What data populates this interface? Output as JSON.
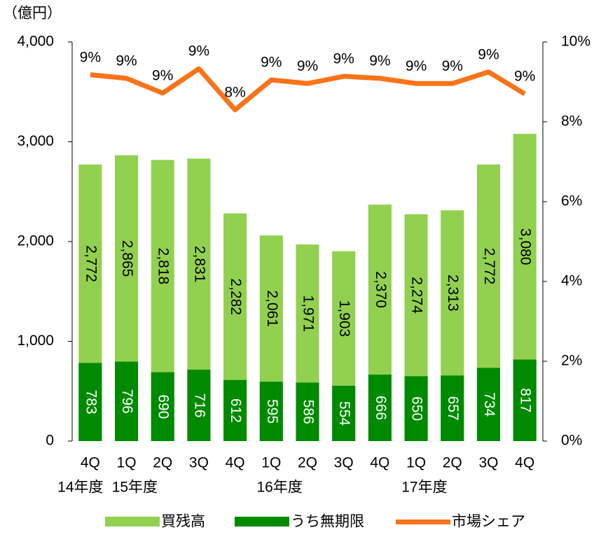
{
  "chart_data": {
    "type": "bar",
    "unit_label": "（億円）",
    "categories": [
      "4Q",
      "1Q",
      "2Q",
      "3Q",
      "4Q",
      "1Q",
      "2Q",
      "3Q",
      "4Q",
      "1Q",
      "2Q",
      "3Q",
      "4Q"
    ],
    "category_groups": [
      {
        "label": "14年度",
        "from": 0,
        "to": 0
      },
      {
        "label": "15年度",
        "from": 1,
        "to": 2
      },
      {
        "label": "16年度",
        "from": 5,
        "to": 6
      },
      {
        "label": "17年度",
        "from": 9,
        "to": 10
      }
    ],
    "series": [
      {
        "name": "買残高",
        "color": "#92d050",
        "values": [
          2772,
          2865,
          2818,
          2831,
          2282,
          2061,
          1971,
          1903,
          2370,
          2274,
          2313,
          2772,
          3080
        ],
        "value_labels": [
          "2,772",
          "2,865",
          "2,818",
          "2,831",
          "2,282",
          "2,061",
          "1,971",
          "1,903",
          "2,370",
          "2,274",
          "2,313",
          "2,772",
          "3,080"
        ]
      },
      {
        "name": "うち無期限",
        "color": "#008a00",
        "values": [
          783,
          796,
          690,
          716,
          612,
          595,
          586,
          554,
          666,
          650,
          657,
          734,
          817
        ]
      },
      {
        "name": "市場シェア",
        "color": "#fa7319",
        "type": "line",
        "axis": "y2",
        "values": [
          9.18,
          9.09,
          8.72,
          9.33,
          8.3,
          9.05,
          8.96,
          9.14,
          9.09,
          8.96,
          8.96,
          9.25,
          8.7
        ],
        "value_labels": [
          "9%",
          "9%",
          "9%",
          "9%",
          "8%",
          "9%",
          "9%",
          "9%",
          "9%",
          "9%",
          "9%",
          "9%",
          "9%"
        ]
      }
    ],
    "ylim": [
      0,
      4000
    ],
    "yticks": [
      0,
      {
        "value": 1000,
        "label": "1,000"
      },
      {
        "value": 2000,
        "label": "2,000"
      },
      {
        "value": 3000,
        "label": "3,000"
      },
      {
        "value": 4000,
        "label": "4,000"
      }
    ],
    "y2lim": [
      0,
      10
    ],
    "y2ticks": [
      {
        "value": 0,
        "label": "0%"
      },
      {
        "value": 2,
        "label": "2%"
      },
      {
        "value": 4,
        "label": "4%"
      },
      {
        "value": 6,
        "label": "6%"
      },
      {
        "value": 8,
        "label": "8%"
      },
      {
        "value": 10,
        "label": "10%"
      }
    ]
  }
}
